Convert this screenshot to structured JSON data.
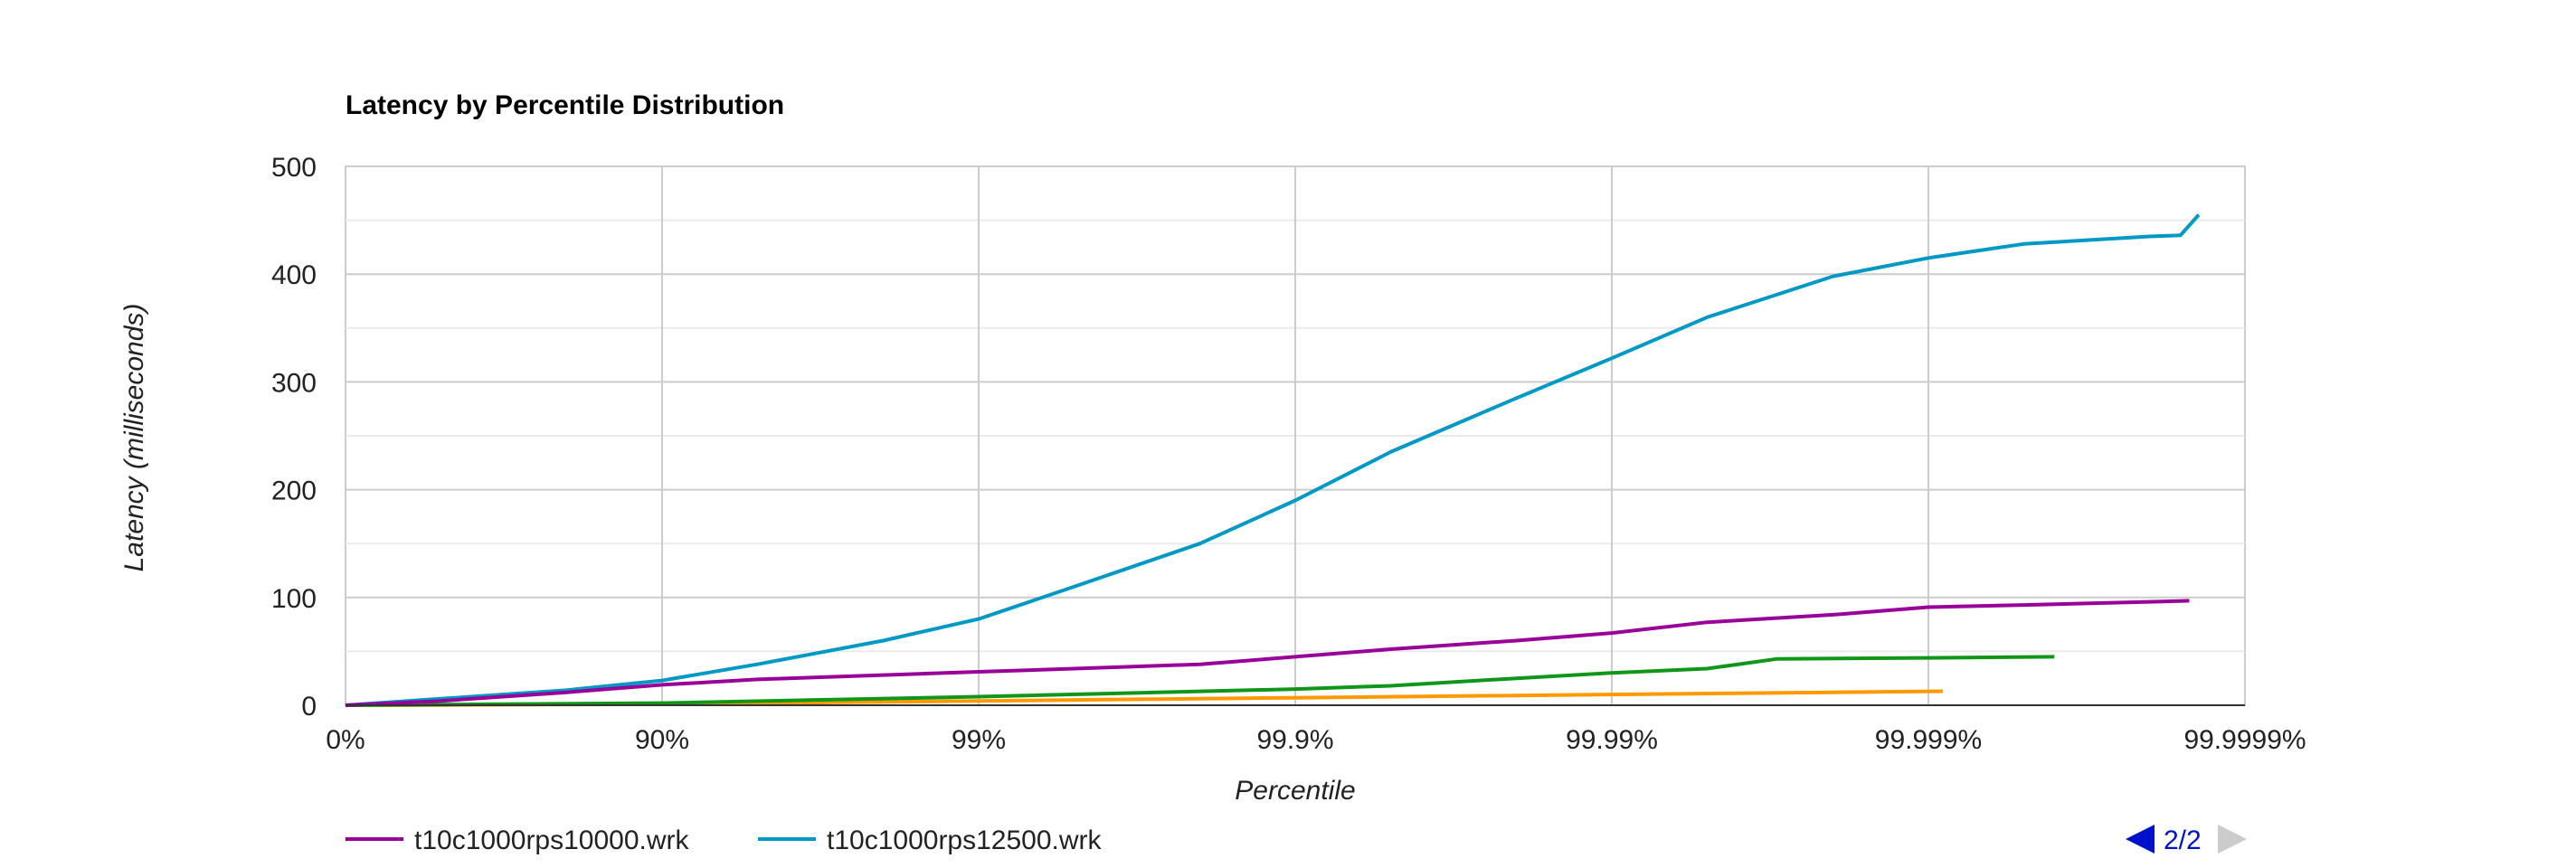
{
  "chart_data": {
    "type": "line",
    "title": "Latency by Percentile Distribution",
    "xlabel": "Percentile",
    "ylabel": "Latency (milliseconds)",
    "x_scale": "log-percentile",
    "x_ticks": [
      "0%",
      "90%",
      "99%",
      "99.9%",
      "99.99%",
      "99.999%",
      "99.9999%"
    ],
    "y_ticks": [
      0,
      100,
      200,
      300,
      400,
      500
    ],
    "ylim": [
      0,
      500
    ],
    "grid": true,
    "legend_position": "bottom",
    "legend": [
      "t10c1000rps10000.wrk",
      "t10c1000rps12500.wrk"
    ],
    "pager": {
      "label": "2/2"
    },
    "series": [
      {
        "name": "t10c1000rps10000.wrk",
        "color": "#990099",
        "points": [
          {
            "x": "0%",
            "y": 0
          },
          {
            "x": "50%",
            "y": 4
          },
          {
            "x": "80%",
            "y": 12
          },
          {
            "x": "90%",
            "y": 19
          },
          {
            "x": "95%",
            "y": 24
          },
          {
            "x": "98%",
            "y": 28
          },
          {
            "x": "99%",
            "y": 31
          },
          {
            "x": "99.5%",
            "y": 34
          },
          {
            "x": "99.8%",
            "y": 38
          },
          {
            "x": "99.9%",
            "y": 45
          },
          {
            "x": "99.95%",
            "y": 52
          },
          {
            "x": "99.98%",
            "y": 60
          },
          {
            "x": "99.99%",
            "y": 67
          },
          {
            "x": "99.995%",
            "y": 77
          },
          {
            "x": "99.998%",
            "y": 84
          },
          {
            "x": "99.999%",
            "y": 91
          },
          {
            "x": "99.9995%",
            "y": 93
          },
          {
            "x": "99.9998%",
            "y": 96
          },
          {
            "x": "99.99985%",
            "y": 97
          }
        ]
      },
      {
        "name": "t10c1000rps12500.wrk",
        "color": "#0099c6",
        "points": [
          {
            "x": "0%",
            "y": 0
          },
          {
            "x": "50%",
            "y": 6
          },
          {
            "x": "80%",
            "y": 14
          },
          {
            "x": "90%",
            "y": 23
          },
          {
            "x": "95%",
            "y": 38
          },
          {
            "x": "98%",
            "y": 60
          },
          {
            "x": "99%",
            "y": 80
          },
          {
            "x": "99.5%",
            "y": 110
          },
          {
            "x": "99.8%",
            "y": 150
          },
          {
            "x": "99.9%",
            "y": 190
          },
          {
            "x": "99.95%",
            "y": 235
          },
          {
            "x": "99.98%",
            "y": 285
          },
          {
            "x": "99.99%",
            "y": 322
          },
          {
            "x": "99.995%",
            "y": 360
          },
          {
            "x": "99.998%",
            "y": 398
          },
          {
            "x": "99.999%",
            "y": 415
          },
          {
            "x": "99.9995%",
            "y": 428
          },
          {
            "x": "99.9998%",
            "y": 435
          },
          {
            "x": "99.99984%",
            "y": 436
          },
          {
            "x": "99.99986%",
            "y": 455
          }
        ]
      },
      {
        "name": "",
        "color": "#109618",
        "points": [
          {
            "x": "0%",
            "y": 0
          },
          {
            "x": "90%",
            "y": 2
          },
          {
            "x": "99%",
            "y": 8
          },
          {
            "x": "99.9%",
            "y": 15
          },
          {
            "x": "99.95%",
            "y": 18
          },
          {
            "x": "99.98%",
            "y": 25
          },
          {
            "x": "99.99%",
            "y": 30
          },
          {
            "x": "99.995%",
            "y": 34
          },
          {
            "x": "99.997%",
            "y": 43
          },
          {
            "x": "99.999%",
            "y": 44
          },
          {
            "x": "99.9996%",
            "y": 45
          }
        ]
      },
      {
        "name": "",
        "color": "#ff9900",
        "points": [
          {
            "x": "0%",
            "y": 0
          },
          {
            "x": "90%",
            "y": 1
          },
          {
            "x": "99%",
            "y": 4
          },
          {
            "x": "99.9%",
            "y": 7
          },
          {
            "x": "99.99%",
            "y": 10
          },
          {
            "x": "99.998%",
            "y": 12
          },
          {
            "x": "99.9991%",
            "y": 13
          }
        ]
      }
    ]
  }
}
